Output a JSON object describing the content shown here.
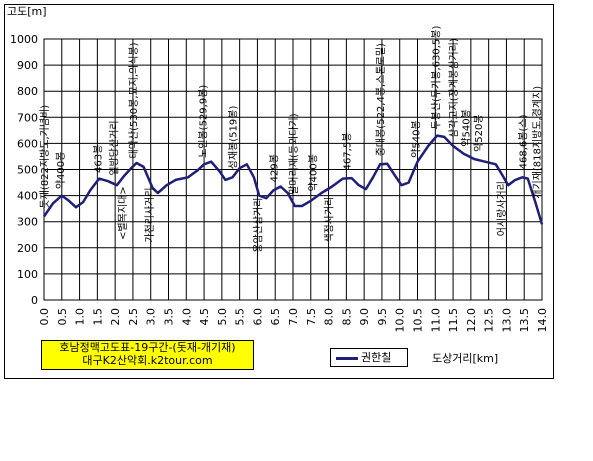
{
  "chart_data": {
    "type": "line",
    "ylabel": "고도[m]",
    "xlabel": "도상거리[km]",
    "ylim": [
      0,
      1000
    ],
    "xlim": [
      0,
      14
    ],
    "yticks": [
      "0",
      "100",
      "200",
      "300",
      "400",
      "500",
      "600",
      "700",
      "800",
      "900",
      "1000"
    ],
    "xticks": [
      "0.0",
      "0.5",
      "1.0",
      "1.5",
      "2.0",
      "2.5",
      "3.0",
      "3.5",
      "4.0",
      "4.5",
      "5.0",
      "5.5",
      "6.0",
      "6.5",
      "7.0",
      "7.5",
      "8.0",
      "8.5",
      "9.0",
      "9.5",
      "10.0",
      "10.5",
      "11.0",
      "11.5",
      "12.0",
      "12.5",
      "13.0",
      "13.5",
      "14.0"
    ],
    "grid": true,
    "series": [
      {
        "name": "권한칠",
        "color": "#1f1f7a",
        "x": [
          0.0,
          0.25,
          0.5,
          0.7,
          0.9,
          1.1,
          1.3,
          1.55,
          1.8,
          2.05,
          2.25,
          2.45,
          2.6,
          2.8,
          3.05,
          3.2,
          3.45,
          3.7,
          4.05,
          4.3,
          4.5,
          4.7,
          4.95,
          5.1,
          5.3,
          5.5,
          5.7,
          5.9,
          6.05,
          6.25,
          6.45,
          6.65,
          6.85,
          7.05,
          7.25,
          7.5,
          7.8,
          8.1,
          8.4,
          8.65,
          8.85,
          9.05,
          9.25,
          9.45,
          9.65,
          9.85,
          10.05,
          10.25,
          10.5,
          10.8,
          11.05,
          11.25,
          11.5,
          11.8,
          12.1,
          12.4,
          12.7,
          12.9,
          13.05,
          13.25,
          13.45,
          13.6,
          13.8,
          14.0
        ],
        "values": [
          320,
          370,
          400,
          380,
          355,
          375,
          420,
          465,
          455,
          440,
          475,
          505,
          525,
          510,
          430,
          410,
          440,
          460,
          470,
          495,
          520,
          530,
          490,
          460,
          470,
          505,
          520,
          470,
          400,
          390,
          420,
          435,
          410,
          360,
          360,
          380,
          410,
          435,
          465,
          467,
          440,
          425,
          470,
          520,
          522,
          480,
          440,
          450,
          530,
          590,
          630,
          625,
          590,
          560,
          540,
          530,
          520,
          475,
          440,
          460,
          470,
          465,
          380,
          290
        ]
      }
    ],
    "annotations": [
      {
        "x": 0.0,
        "text": "돗재(822지방도,기념비)"
      },
      {
        "x": 0.45,
        "text": "약400봉"
      },
      {
        "x": 1.5,
        "text": "463봉"
      },
      {
        "x": 1.95,
        "text": "일방당산거리"
      },
      {
        "x": 2.2,
        "text": "<별목지대>"
      },
      {
        "x": 2.5,
        "text": "태악산(530봉,묘지,의식봉)"
      },
      {
        "x": 2.95,
        "text": "가천리사거리"
      },
      {
        "x": 4.45,
        "text": "노인봉(529,9봉)"
      },
      {
        "x": 5.3,
        "text": "성재봉(519봉)"
      },
      {
        "x": 6.0,
        "text": "용암산삼거리"
      },
      {
        "x": 6.45,
        "text": "429봉"
      },
      {
        "x": 7.0,
        "text": "말머리재(등뫼다기)"
      },
      {
        "x": 7.55,
        "text": "약400봉"
      },
      {
        "x": 8.0,
        "text": "색정사거리"
      },
      {
        "x": 8.5,
        "text": "467,5봉"
      },
      {
        "x": 9.45,
        "text": "중대봉(522,4봉,스톤로밀)"
      },
      {
        "x": 10.45,
        "text": "약540봉"
      },
      {
        "x": 11.0,
        "text": "두봉산(두가봉,630,5봉)"
      },
      {
        "x": 11.5,
        "text": "삼각고지(장계봉삼거리)"
      },
      {
        "x": 11.85,
        "text": "약540봉"
      },
      {
        "x": 12.2,
        "text": "약520봉"
      },
      {
        "x": 12.85,
        "text": "어시랑사거리"
      },
      {
        "x": 13.45,
        "text": "468,6봉(스)"
      },
      {
        "x": 13.85,
        "text": "개기재(818지방도,경계지)"
      }
    ]
  },
  "title_box": {
    "line1": "호남정맥고도표-19구간-(돗재-개기재)",
    "line2": "대구K2산악회.k2tour.com"
  },
  "legend": {
    "label": "권한칠"
  }
}
